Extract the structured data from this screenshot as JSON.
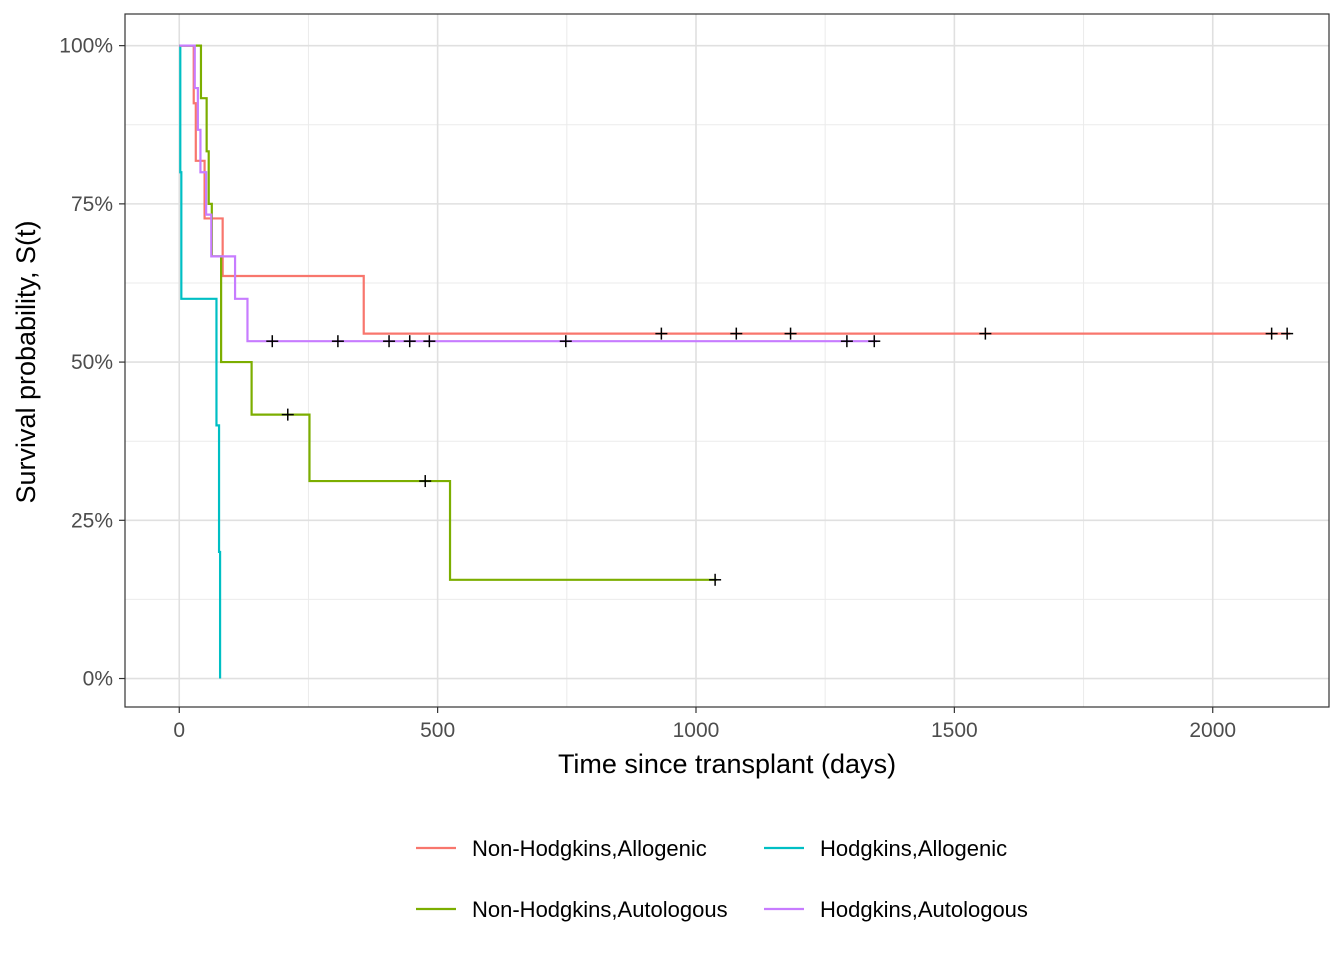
{
  "chart_data": {
    "type": "line",
    "step": true,
    "xlabel": "Time since transplant (days)",
    "ylabel": "Survival probability, S(t)",
    "xlim": [
      -105,
      2225
    ],
    "ylim": [
      -0.045,
      1.05
    ],
    "x_ticks": [
      0,
      500,
      1000,
      1500,
      2000
    ],
    "x_tick_labels": [
      "0",
      "500",
      "1000",
      "1500",
      "2000"
    ],
    "y_ticks": [
      0,
      0.25,
      0.5,
      0.75,
      1
    ],
    "y_tick_labels": [
      "0%",
      "25%",
      "50%",
      "75%",
      "100%"
    ],
    "grid": true,
    "legend_position": "bottom",
    "censor_marker": "+",
    "series": [
      {
        "name": "Non-Hodgkins,Allogenic",
        "color": "#F8766D",
        "steps": [
          [
            0,
            1.0
          ],
          [
            28,
            0.909
          ],
          [
            32,
            0.818
          ],
          [
            49,
            0.727
          ],
          [
            84,
            0.636
          ],
          [
            357,
            0.545
          ],
          [
            2150,
            0.545
          ]
        ],
        "censored": [
          [
            933,
            0.545
          ],
          [
            1078,
            0.545
          ],
          [
            1183,
            0.545
          ],
          [
            1560,
            0.545
          ],
          [
            2114,
            0.545
          ],
          [
            2144,
            0.545
          ]
        ]
      },
      {
        "name": "Hodgkins,Allogenic",
        "color": "#00BFC4",
        "steps": [
          [
            0,
            1.0
          ],
          [
            2,
            0.8
          ],
          [
            4,
            0.6
          ],
          [
            72,
            0.4
          ],
          [
            77,
            0.2
          ],
          [
            79,
            0.0
          ]
        ],
        "censored": []
      },
      {
        "name": "Non-Hodgkins,Autologous",
        "color": "#7CAE00",
        "steps": [
          [
            0,
            1.0
          ],
          [
            42,
            0.917
          ],
          [
            53,
            0.833
          ],
          [
            57,
            0.75
          ],
          [
            63,
            0.667
          ],
          [
            81,
            0.5
          ],
          [
            140,
            0.417
          ],
          [
            252,
            0.312
          ],
          [
            524,
            0.156
          ],
          [
            1040,
            0.156
          ]
        ],
        "censored": [
          [
            210,
            0.417
          ],
          [
            476,
            0.312
          ],
          [
            1037,
            0.156
          ]
        ]
      },
      {
        "name": "Hodgkins,Autologous",
        "color": "#C77CFF",
        "steps": [
          [
            0,
            1.0
          ],
          [
            30,
            0.933
          ],
          [
            36,
            0.867
          ],
          [
            41,
            0.8
          ],
          [
            52,
            0.733
          ],
          [
            62,
            0.667
          ],
          [
            108,
            0.6
          ],
          [
            132,
            0.533
          ],
          [
            1350,
            0.533
          ]
        ],
        "censored": [
          [
            180,
            0.533
          ],
          [
            307,
            0.533
          ],
          [
            406,
            0.533
          ],
          [
            446,
            0.533
          ],
          [
            484,
            0.533
          ],
          [
            748,
            0.533
          ],
          [
            1292,
            0.533
          ],
          [
            1345,
            0.533
          ]
        ]
      }
    ]
  },
  "legend": {
    "items": [
      {
        "label": "Non-Hodgkins,Allogenic",
        "color": "#F8766D"
      },
      {
        "label": "Hodgkins,Allogenic",
        "color": "#00BFC4"
      },
      {
        "label": "Non-Hodgkins,Autologous",
        "color": "#7CAE00"
      },
      {
        "label": "Hodgkins,Autologous",
        "color": "#C77CFF"
      }
    ]
  }
}
